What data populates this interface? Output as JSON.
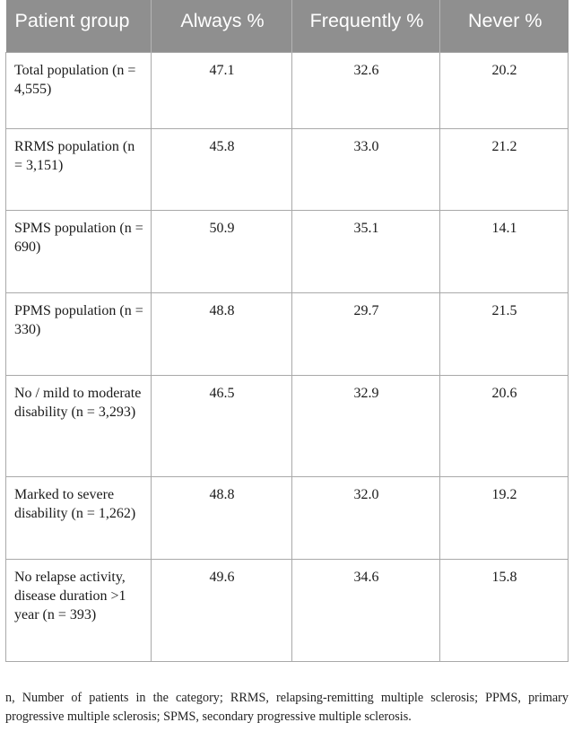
{
  "table": {
    "headers": [
      "Patient group",
      "Always %",
      "Frequently %",
      "Never %"
    ],
    "rows": [
      {
        "group": "Total population (n = 4,555)",
        "always": "47.1",
        "frequently": "32.6",
        "never": "20.2"
      },
      {
        "group": "RRMS population (n = 3,151)",
        "always": "45.8",
        "frequently": "33.0",
        "never": "21.2"
      },
      {
        "group": "SPMS population (n = 690)",
        "always": "50.9",
        "frequently": "35.1",
        "never": "14.1"
      },
      {
        "group": "PPMS population (n = 330)",
        "always": "48.8",
        "frequently": "29.7",
        "never": "21.5"
      },
      {
        "group": "No / mild to moderate disability (n = 3,293)",
        "always": "46.5",
        "frequently": "32.9",
        "never": "20.6"
      },
      {
        "group": "Marked to severe disability (n = 1,262)",
        "always": "48.8",
        "frequently": "32.0",
        "never": "19.2"
      },
      {
        "group": "No relapse activity, disease duration >1 year (n = 393)",
        "always": "49.6",
        "frequently": "34.6",
        "never": "15.8"
      }
    ]
  },
  "footnote": "n, Number of patients in the category; RRMS, relapsing-remitting multiple sclerosis; PPMS, primary progressive multiple sclerosis; SPMS, secondary progressive multiple sclerosis."
}
